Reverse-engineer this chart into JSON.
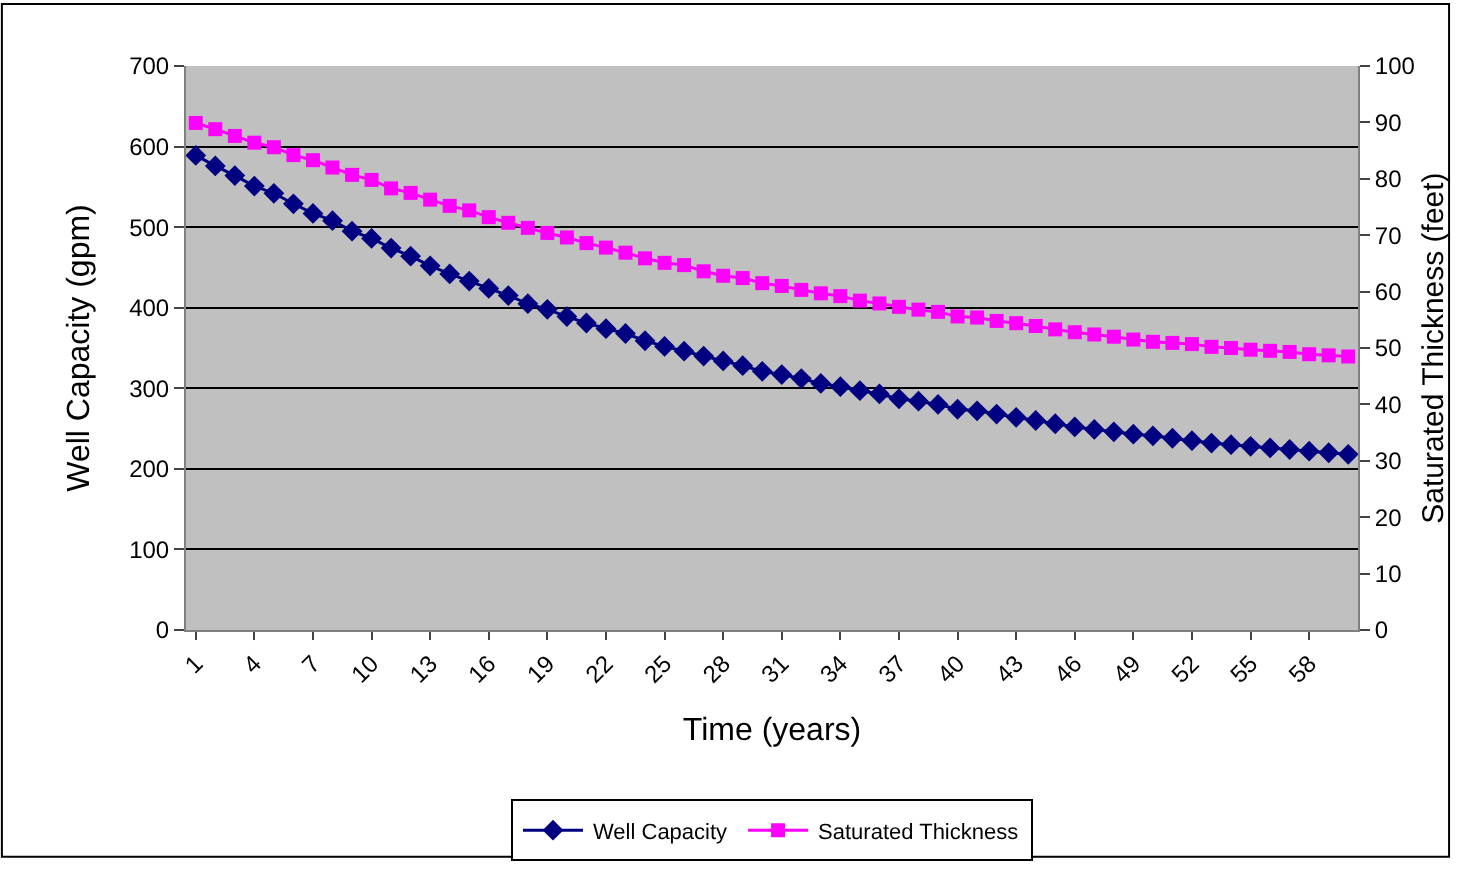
{
  "chart_data": {
    "type": "line",
    "xlabel": "Time (years)",
    "ylabel": "Well Capacity (gpm)",
    "y2label": "Saturated Thickness (feet)",
    "categories": [
      "1",
      null,
      null,
      "4",
      null,
      null,
      "7",
      null,
      null,
      "10",
      null,
      null,
      "13",
      null,
      null,
      "16",
      null,
      null,
      "19",
      null,
      null,
      "22",
      null,
      null,
      "25",
      null,
      null,
      "28",
      null,
      null,
      "31",
      null,
      null,
      "34",
      null,
      null,
      "37",
      null,
      null,
      "40",
      null,
      null,
      "43",
      null,
      null,
      "46",
      null,
      null,
      "49",
      null,
      null,
      "52",
      null,
      null,
      "55",
      null,
      null,
      "58",
      null,
      null
    ],
    "series": [
      {
        "name": "Well Capacity",
        "color": "#000080",
        "marker": "diamond",
        "values": [
          589,
          576,
          564,
          551,
          542,
          529,
          517,
          508,
          495,
          486,
          474,
          464,
          452,
          442,
          433,
          424,
          415,
          405,
          398,
          389,
          381,
          374,
          368,
          359,
          352,
          346,
          340,
          334,
          328,
          321,
          317,
          312,
          306,
          302,
          297,
          293,
          287,
          284,
          280,
          274,
          272,
          268,
          264,
          260,
          256,
          252,
          249,
          246,
          243,
          241,
          238,
          235,
          232,
          230,
          228,
          226,
          224,
          222,
          220,
          218
        ]
      },
      {
        "name": "Saturated Thickness",
        "color": "#ff00ff",
        "marker": "square",
        "axis": "y2",
        "values": [
          89.9,
          88.8,
          87.6,
          86.4,
          85.6,
          84.2,
          83.3,
          82.0,
          80.7,
          79.8,
          78.3,
          77.5,
          76.3,
          75.2,
          74.4,
          73.2,
          72.2,
          71.3,
          70.4,
          69.6,
          68.6,
          67.8,
          66.9,
          65.9,
          65.1,
          64.7,
          63.6,
          62.8,
          62.4,
          61.5,
          61.0,
          60.3,
          59.7,
          59.2,
          58.4,
          57.9,
          57.3,
          56.8,
          56.4,
          55.6,
          55.4,
          54.8,
          54.4,
          53.9,
          53.3,
          52.8,
          52.4,
          52.0,
          51.5,
          51.1,
          50.9,
          50.7,
          50.2,
          50.0,
          49.7,
          49.5,
          49.3,
          48.9,
          48.7,
          48.5
        ]
      }
    ],
    "ylim": [
      0,
      700
    ],
    "yticks": [
      0,
      100,
      200,
      300,
      400,
      500,
      600,
      700
    ],
    "y2lim": [
      0,
      100
    ],
    "y2ticks": [
      0,
      10,
      20,
      30,
      40,
      50,
      60,
      70,
      80,
      90,
      100
    ],
    "grid": "y",
    "legend": "bottom",
    "line_style": "solid"
  }
}
